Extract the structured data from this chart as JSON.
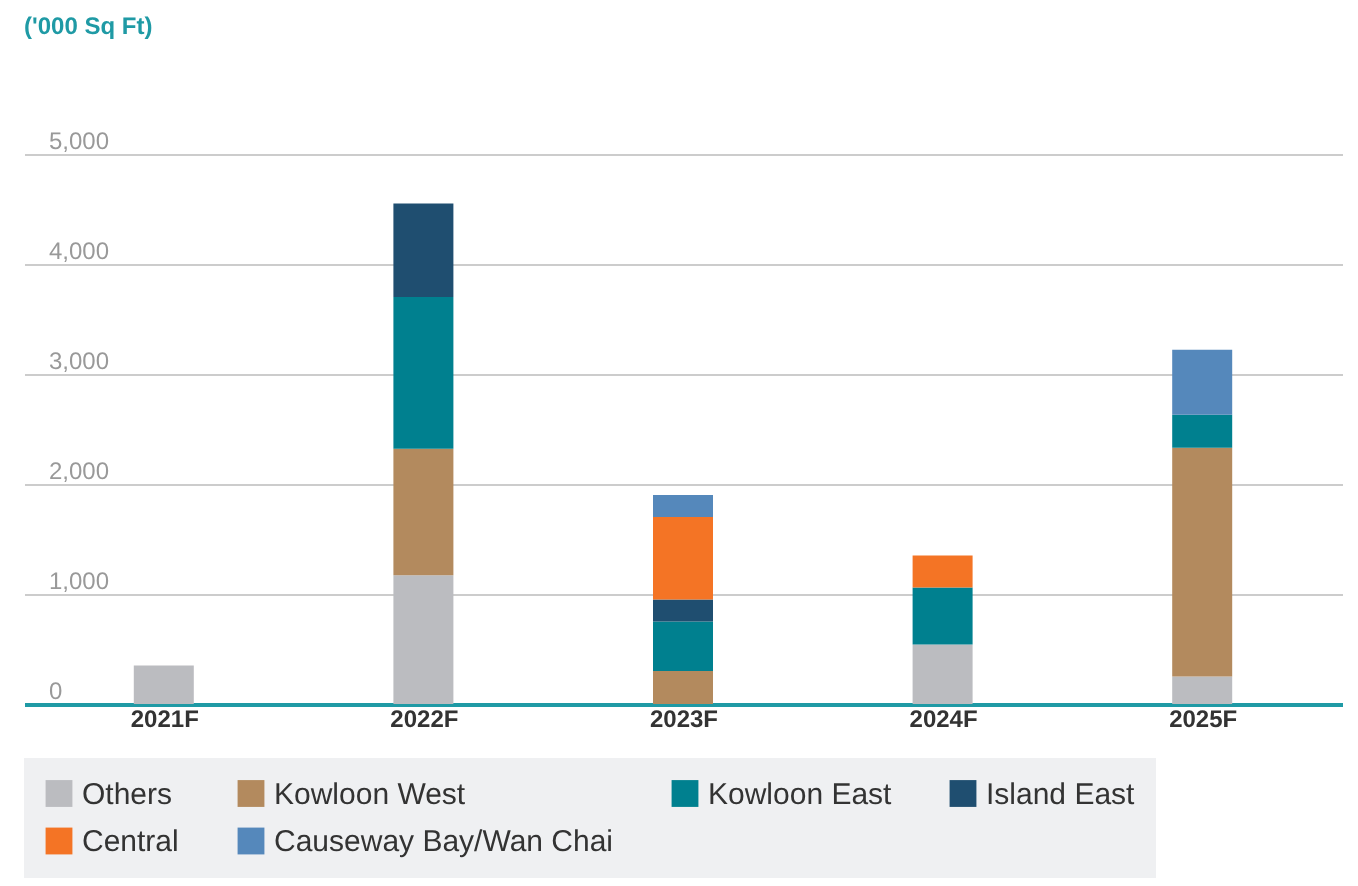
{
  "chart_data": {
    "type": "bar",
    "stacked": true,
    "ylabel": "('000 Sq Ft)",
    "categories": [
      "2021F",
      "2022F",
      "2023F",
      "2024F",
      "2025F"
    ],
    "series": [
      {
        "name": "Others",
        "color": "#bbbcc0",
        "values": [
          350,
          1170,
          null,
          540,
          250
        ]
      },
      {
        "name": "Kowloon West",
        "color": "#b38a5e",
        "values": [
          null,
          1150,
          300,
          null,
          2080
        ]
      },
      {
        "name": "Kowloon East",
        "color": "#00808f",
        "values": [
          null,
          1380,
          450,
          520,
          300
        ]
      },
      {
        "name": "Island East",
        "color": "#1f4e70",
        "values": [
          null,
          850,
          200,
          null,
          null
        ]
      },
      {
        "name": "Central",
        "color": "#f47425",
        "values": [
          null,
          null,
          750,
          290,
          null
        ]
      },
      {
        "name": "Causeway Bay/Wan Chai",
        "color": "#5588bb",
        "values": [
          null,
          null,
          200,
          null,
          590
        ]
      }
    ],
    "ylim": [
      0,
      5000
    ],
    "yticks": [
      0,
      {
        "value": 1000,
        "label": "1,000"
      },
      {
        "value": 2000,
        "label": "2,000"
      },
      {
        "value": 3000,
        "label": "3,000"
      },
      {
        "value": 4000,
        "label": "4,000"
      },
      {
        "value": 5000,
        "label": "5,000"
      }
    ],
    "grid": "y",
    "legend": "bottom"
  }
}
